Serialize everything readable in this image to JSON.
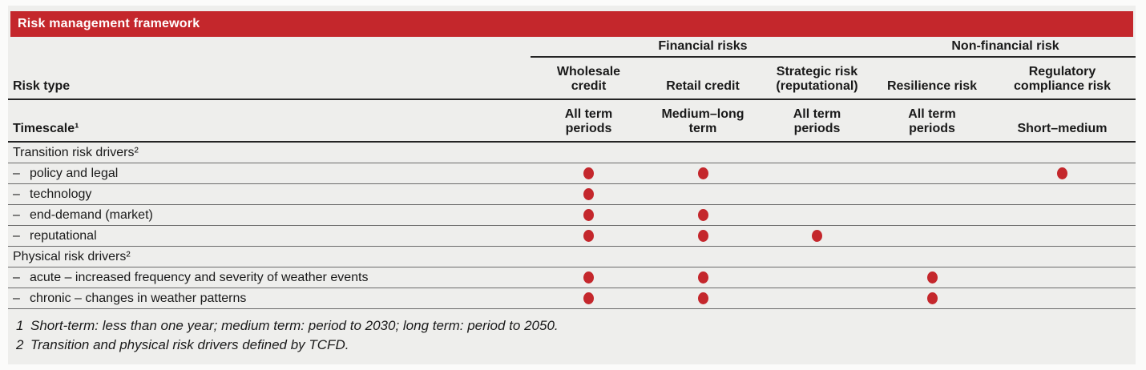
{
  "title": "Risk management framework",
  "colors": {
    "accent_red": "#c4272c",
    "panel_bg": "#eeeeec",
    "text": "#1a1a1a"
  },
  "table": {
    "groups": [
      {
        "label": "Financial risks"
      },
      {
        "label": "Non-financial risk"
      }
    ],
    "risk_type_label": "Risk type",
    "columns": [
      "Wholesale\ncredit",
      "Retail credit",
      "Strategic risk\n(reputational)",
      "Resilience risk",
      "Regulatory\ncompliance risk"
    ],
    "timescale_label": "Timescale¹",
    "timescales": [
      "All term\nperiods",
      "Medium–long\nterm",
      "All term\nperiods",
      "All term\nperiods",
      "Short–medium"
    ],
    "rows": [
      {
        "dash": "",
        "label": "Transition risk drivers²",
        "dots": [
          "false",
          "false",
          "false",
          "false",
          "false"
        ]
      },
      {
        "dash": "–",
        "label": "policy and legal",
        "dots": [
          "true",
          "true",
          "false",
          "false",
          "true"
        ]
      },
      {
        "dash": "–",
        "label": "technology",
        "dots": [
          "true",
          "false",
          "false",
          "false",
          "false"
        ]
      },
      {
        "dash": "–",
        "label": "end-demand (market)",
        "dots": [
          "true",
          "true",
          "false",
          "false",
          "false"
        ]
      },
      {
        "dash": "–",
        "label": "reputational",
        "dots": [
          "true",
          "true",
          "true",
          "false",
          "false"
        ]
      },
      {
        "dash": "",
        "label": "Physical risk drivers²",
        "dots": [
          "false",
          "false",
          "false",
          "false",
          "false"
        ]
      },
      {
        "dash": "–",
        "label": "acute – increased frequency and severity of weather events",
        "dots": [
          "true",
          "true",
          "false",
          "true",
          "false"
        ]
      },
      {
        "dash": "–",
        "label": "chronic – changes in weather patterns",
        "dots": [
          "true",
          "true",
          "false",
          "true",
          "false"
        ]
      }
    ]
  },
  "footnotes": [
    {
      "num": "1",
      "text": "Short-term: less than one year; medium term: period to 2030; long term: period to 2050."
    },
    {
      "num": "2",
      "text": "Transition and physical risk drivers defined by TCFD."
    }
  ]
}
